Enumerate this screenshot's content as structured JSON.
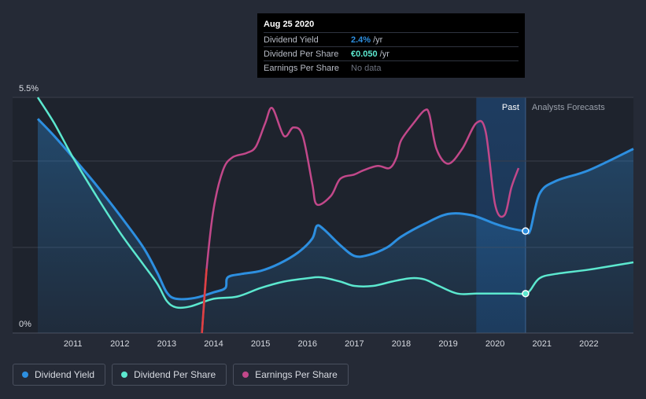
{
  "chart_data": {
    "type": "line",
    "x_axis": {
      "range": [
        2010.25,
        2022.95
      ],
      "tick_labels": [
        "2011",
        "2012",
        "2013",
        "2014",
        "2015",
        "2016",
        "2017",
        "2018",
        "2019",
        "2020",
        "2021",
        "2022"
      ],
      "tick_values": [
        2011,
        2012,
        2013,
        2014,
        2015,
        2016,
        2017,
        2018,
        2019,
        2020,
        2021,
        2022
      ]
    },
    "y_axis": {
      "range": [
        0,
        5.5
      ],
      "top_label": "5.5%",
      "bottom_label": "0%"
    },
    "regions": {
      "past_label": "Past",
      "forecast_label": "Analysts Forecasts",
      "divider_x": 2020.65,
      "past_shade_start_x": 2019.6
    },
    "series": [
      {
        "name": "Dividend Yield",
        "color": "#2d8fe0",
        "unit": "% (chart scale)",
        "points": [
          [
            2010.25,
            5.0
          ],
          [
            2010.6,
            4.6
          ],
          [
            2011.0,
            4.1
          ],
          [
            2011.5,
            3.45
          ],
          [
            2012.0,
            2.75
          ],
          [
            2012.5,
            2.0
          ],
          [
            2012.8,
            1.4
          ],
          [
            2013.0,
            0.95
          ],
          [
            2013.2,
            0.8
          ],
          [
            2013.6,
            0.82
          ],
          [
            2014.0,
            0.95
          ],
          [
            2014.25,
            1.05
          ],
          [
            2014.3,
            1.3
          ],
          [
            2014.6,
            1.38
          ],
          [
            2015.0,
            1.45
          ],
          [
            2015.4,
            1.62
          ],
          [
            2015.8,
            1.88
          ],
          [
            2016.1,
            2.2
          ],
          [
            2016.2,
            2.5
          ],
          [
            2016.35,
            2.42
          ],
          [
            2016.7,
            2.05
          ],
          [
            2017.0,
            1.8
          ],
          [
            2017.3,
            1.82
          ],
          [
            2017.7,
            2.0
          ],
          [
            2018.0,
            2.25
          ],
          [
            2018.5,
            2.55
          ],
          [
            2019.0,
            2.78
          ],
          [
            2019.5,
            2.75
          ],
          [
            2020.0,
            2.55
          ],
          [
            2020.3,
            2.45
          ],
          [
            2020.65,
            2.38
          ],
          [
            2020.75,
            2.4
          ],
          [
            2020.95,
            3.25
          ],
          [
            2021.3,
            3.55
          ],
          [
            2022.0,
            3.8
          ],
          [
            2022.95,
            4.3
          ]
        ]
      },
      {
        "name": "Dividend Per Share",
        "color": "#5ce8cf",
        "unit": "€ (chart scale)",
        "points": [
          [
            2010.25,
            5.5
          ],
          [
            2010.6,
            4.9
          ],
          [
            2011.0,
            4.1
          ],
          [
            2011.5,
            3.2
          ],
          [
            2012.0,
            2.35
          ],
          [
            2012.5,
            1.6
          ],
          [
            2012.8,
            1.15
          ],
          [
            2013.0,
            0.75
          ],
          [
            2013.2,
            0.6
          ],
          [
            2013.5,
            0.62
          ],
          [
            2014.0,
            0.8
          ],
          [
            2014.5,
            0.85
          ],
          [
            2015.0,
            1.05
          ],
          [
            2015.5,
            1.2
          ],
          [
            2016.0,
            1.28
          ],
          [
            2016.3,
            1.3
          ],
          [
            2016.7,
            1.2
          ],
          [
            2017.0,
            1.1
          ],
          [
            2017.4,
            1.1
          ],
          [
            2017.8,
            1.2
          ],
          [
            2018.2,
            1.28
          ],
          [
            2018.5,
            1.25
          ],
          [
            2018.8,
            1.1
          ],
          [
            2019.2,
            0.92
          ],
          [
            2019.6,
            0.92
          ],
          [
            2020.0,
            0.92
          ],
          [
            2020.4,
            0.92
          ],
          [
            2020.65,
            0.92
          ],
          [
            2020.75,
            1.0
          ],
          [
            2020.95,
            1.28
          ],
          [
            2021.3,
            1.38
          ],
          [
            2022.0,
            1.48
          ],
          [
            2022.95,
            1.65
          ]
        ]
      },
      {
        "name": "Earnings Per Share",
        "color": "#c2488a",
        "unit": "€ (chart scale)",
        "points": [
          [
            2013.75,
            0.0
          ],
          [
            2013.85,
            1.5
          ],
          [
            2014.0,
            2.9
          ],
          [
            2014.2,
            3.8
          ],
          [
            2014.4,
            4.1
          ],
          [
            2014.7,
            4.2
          ],
          [
            2014.9,
            4.35
          ],
          [
            2015.1,
            4.9
          ],
          [
            2015.25,
            5.25
          ],
          [
            2015.5,
            4.6
          ],
          [
            2015.7,
            4.8
          ],
          [
            2015.9,
            4.6
          ],
          [
            2016.1,
            3.5
          ],
          [
            2016.2,
            3.0
          ],
          [
            2016.5,
            3.2
          ],
          [
            2016.7,
            3.6
          ],
          [
            2017.0,
            3.7
          ],
          [
            2017.2,
            3.8
          ],
          [
            2017.5,
            3.9
          ],
          [
            2017.75,
            3.85
          ],
          [
            2017.9,
            4.1
          ],
          [
            2018.0,
            4.5
          ],
          [
            2018.3,
            4.95
          ],
          [
            2018.5,
            5.2
          ],
          [
            2018.6,
            5.1
          ],
          [
            2018.75,
            4.3
          ],
          [
            2019.0,
            3.95
          ],
          [
            2019.3,
            4.3
          ],
          [
            2019.6,
            4.9
          ],
          [
            2019.8,
            4.7
          ],
          [
            2020.0,
            3.0
          ],
          [
            2020.2,
            2.75
          ],
          [
            2020.35,
            3.4
          ],
          [
            2020.5,
            3.85
          ]
        ]
      }
    ],
    "highlight": {
      "x": 2020.65,
      "values": [
        2.38,
        0.92
      ]
    }
  },
  "tooltip": {
    "date": "Aug 25 2020",
    "rows": [
      {
        "label": "Dividend Yield",
        "value": "2.4%",
        "suffix": "/yr",
        "value_color": "#2d8fe0"
      },
      {
        "label": "Dividend Per Share",
        "value": "€0.050",
        "suffix": "/yr",
        "value_color": "#5ce8cf"
      },
      {
        "label": "Earnings Per Share",
        "value": "No data",
        "suffix": "",
        "value_color": "#6e7380"
      }
    ]
  },
  "legend": {
    "items": [
      {
        "label": "Dividend Yield",
        "color": "#2d8fe0"
      },
      {
        "label": "Dividend Per Share",
        "color": "#5ce8cf"
      },
      {
        "label": "Earnings Per Share",
        "color": "#c2488a"
      }
    ]
  },
  "colors": {
    "background": "#252a36",
    "plot_bg": "#1e232d",
    "past_shade": "#1b3656",
    "grid": "#3a3f4b",
    "axis_text": "#d8dbe2"
  }
}
